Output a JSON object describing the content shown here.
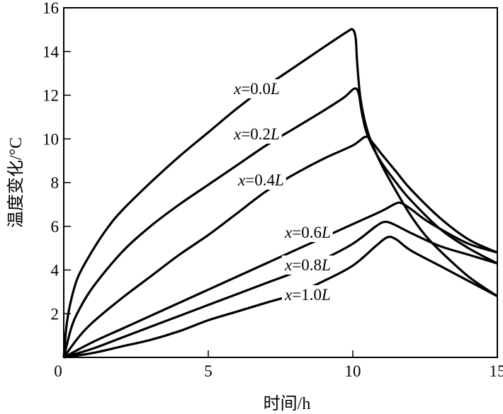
{
  "chart_data": {
    "type": "line",
    "title": "",
    "xlabel": "时间/h",
    "ylabel": "温度变化/°C",
    "xlim": [
      0,
      15
    ],
    "ylim": [
      0,
      16
    ],
    "xticks": [
      0,
      5,
      10,
      15
    ],
    "yticks": [
      0,
      2,
      4,
      6,
      8,
      10,
      12,
      14,
      16
    ],
    "xtick_labels": [
      "0",
      "5",
      "10",
      "15"
    ],
    "ytick_labels": [
      "0",
      "2",
      "4",
      "6",
      "8",
      "10",
      "12",
      "14",
      "16"
    ],
    "grid": false,
    "legend": "inline labels",
    "series": [
      {
        "name": "x=0.0L",
        "var": "x",
        "eq": "=0.0",
        "unit": "L",
        "points": [
          [
            0,
            0
          ],
          [
            0.1,
            1.5
          ],
          [
            0.25,
            2.6
          ],
          [
            0.5,
            3.7
          ],
          [
            1,
            4.9
          ],
          [
            1.5,
            5.9
          ],
          [
            2,
            6.7
          ],
          [
            3,
            8.0
          ],
          [
            4,
            9.2
          ],
          [
            5,
            10.3
          ],
          [
            6,
            11.4
          ],
          [
            7,
            12.4
          ],
          [
            8,
            13.3
          ],
          [
            9,
            14.2
          ],
          [
            9.8,
            14.9
          ],
          [
            10,
            15.0
          ],
          [
            10.1,
            14.6
          ],
          [
            10.15,
            13.5
          ],
          [
            10.25,
            12.0
          ],
          [
            10.4,
            10.9
          ],
          [
            10.6,
            10.0
          ],
          [
            11,
            8.8
          ],
          [
            11.5,
            7.6
          ],
          [
            12,
            6.5
          ],
          [
            12.5,
            5.6
          ],
          [
            13,
            4.9
          ],
          [
            14,
            3.7
          ],
          [
            15,
            2.8
          ]
        ]
      },
      {
        "name": "x=0.2L",
        "var": "x",
        "eq": "=0.2",
        "unit": "L",
        "points": [
          [
            0,
            0
          ],
          [
            0.25,
            1.3
          ],
          [
            0.5,
            2.1
          ],
          [
            1,
            3.2
          ],
          [
            2,
            4.8
          ],
          [
            3,
            6.0
          ],
          [
            4,
            7.0
          ],
          [
            5,
            7.9
          ],
          [
            6,
            8.8
          ],
          [
            7,
            9.7
          ],
          [
            8,
            10.5
          ],
          [
            9,
            11.3
          ],
          [
            9.7,
            11.9
          ],
          [
            10.05,
            12.3
          ],
          [
            10.2,
            12.1
          ],
          [
            10.3,
            11.3
          ],
          [
            10.45,
            10.4
          ],
          [
            10.7,
            9.6
          ],
          [
            11,
            8.9
          ],
          [
            11.5,
            8.0
          ],
          [
            12,
            7.2
          ],
          [
            13,
            5.9
          ],
          [
            14,
            5.0
          ],
          [
            15,
            4.3
          ]
        ]
      },
      {
        "name": "x=0.4L",
        "var": "x",
        "eq": "=0.4",
        "unit": "L",
        "points": [
          [
            0,
            0
          ],
          [
            0.5,
            0.9
          ],
          [
            1,
            1.6
          ],
          [
            2,
            2.7
          ],
          [
            3,
            3.7
          ],
          [
            4,
            4.7
          ],
          [
            5,
            5.6
          ],
          [
            6,
            6.6
          ],
          [
            7,
            7.6
          ],
          [
            8,
            8.4
          ],
          [
            9,
            9.1
          ],
          [
            10,
            9.7
          ],
          [
            10.45,
            10.1
          ],
          [
            10.7,
            9.8
          ],
          [
            11,
            9.3
          ],
          [
            11.5,
            8.5
          ],
          [
            12,
            7.7
          ],
          [
            13,
            6.4
          ],
          [
            14,
            5.4
          ],
          [
            15,
            4.8
          ]
        ]
      },
      {
        "name": "x=0.6L",
        "var": "x",
        "eq": "=0.6",
        "unit": "L",
        "points": [
          [
            0,
            0
          ],
          [
            1,
            0.7
          ],
          [
            2,
            1.3
          ],
          [
            3,
            1.9
          ],
          [
            4,
            2.5
          ],
          [
            5,
            3.1
          ],
          [
            6,
            3.7
          ],
          [
            7,
            4.3
          ],
          [
            8,
            4.9
          ],
          [
            9,
            5.5
          ],
          [
            10,
            6.1
          ],
          [
            11,
            6.7
          ],
          [
            11.5,
            7.05
          ],
          [
            11.7,
            7.05
          ],
          [
            12,
            6.8
          ],
          [
            12.5,
            6.3
          ],
          [
            13,
            5.9
          ],
          [
            14,
            5.2
          ],
          [
            15,
            4.8
          ]
        ]
      },
      {
        "name": "x=0.8L",
        "var": "x",
        "eq": "=0.8",
        "unit": "L",
        "points": [
          [
            0,
            0
          ],
          [
            1,
            0.4
          ],
          [
            2,
            0.9
          ],
          [
            3,
            1.4
          ],
          [
            4,
            1.9
          ],
          [
            5,
            2.4
          ],
          [
            6,
            2.9
          ],
          [
            7,
            3.4
          ],
          [
            8,
            3.9
          ],
          [
            9,
            4.5
          ],
          [
            10,
            5.2
          ],
          [
            10.8,
            6.0
          ],
          [
            11.1,
            6.2
          ],
          [
            11.4,
            6.1
          ],
          [
            12,
            5.7
          ],
          [
            13,
            5.1
          ],
          [
            14,
            4.7
          ],
          [
            15,
            4.3
          ]
        ]
      },
      {
        "name": "x=1.0L",
        "var": "x",
        "eq": "=1.0",
        "unit": "L",
        "points": [
          [
            0,
            0
          ],
          [
            1,
            0.2
          ],
          [
            2,
            0.5
          ],
          [
            3,
            0.8
          ],
          [
            4,
            1.2
          ],
          [
            5,
            1.7
          ],
          [
            6,
            2.1
          ],
          [
            7,
            2.5
          ],
          [
            8,
            2.9
          ],
          [
            9,
            3.5
          ],
          [
            10,
            4.2
          ],
          [
            10.8,
            5.1
          ],
          [
            11.2,
            5.5
          ],
          [
            11.5,
            5.4
          ],
          [
            12,
            4.9
          ],
          [
            13,
            4.2
          ],
          [
            14,
            3.5
          ],
          [
            15,
            2.8
          ]
        ]
      }
    ]
  }
}
